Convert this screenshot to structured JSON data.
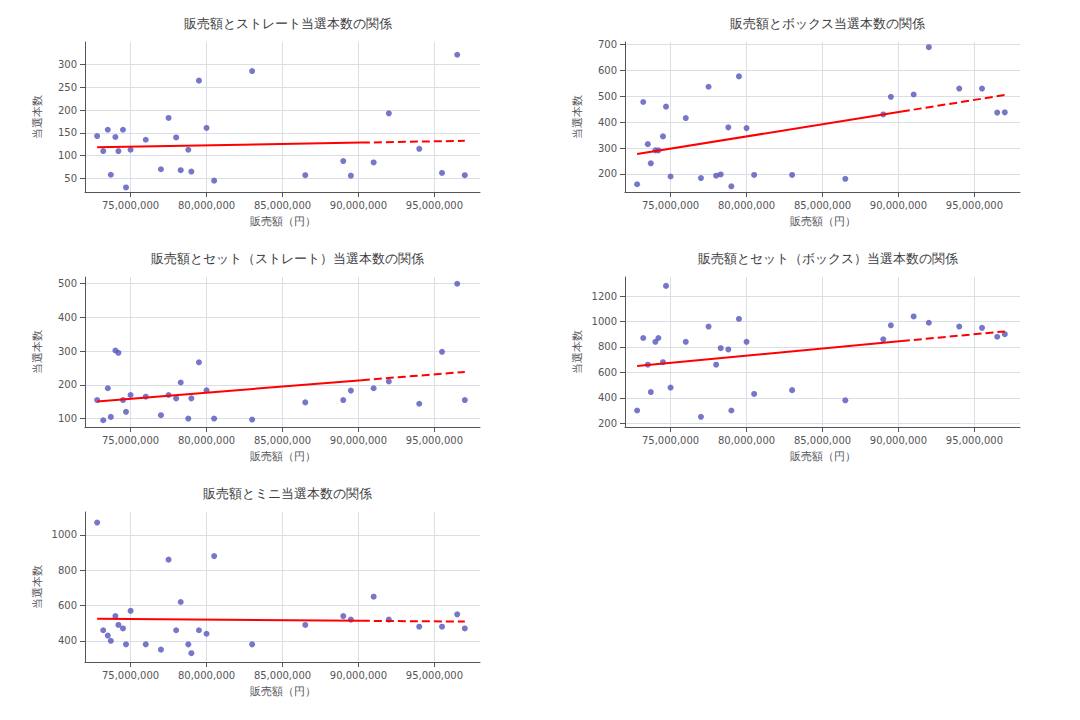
{
  "chart_data": [
    {
      "type": "scatter",
      "title": "販売額とストレート当選本数の関係",
      "xlabel": "販売額（円）",
      "ylabel": "当選本数",
      "xlim": [
        72000000,
        98000000
      ],
      "xticks": [
        {
          "value": 75000000,
          "label": "75,000,000"
        },
        {
          "value": 80000000,
          "label": "80,000,000"
        },
        {
          "value": 85000000,
          "label": "85,000,000"
        },
        {
          "value": 90000000,
          "label": "90,000,000"
        },
        {
          "value": 95000000,
          "label": "95,000,000"
        }
      ],
      "ylim": [
        20,
        350
      ],
      "yticks": [
        50,
        100,
        150,
        200,
        250,
        300
      ],
      "grid": true,
      "series": [
        {
          "type": "scatter",
          "color": "#5555bb",
          "marker": "circle",
          "x": [
            72800000,
            73200000,
            73500000,
            73700000,
            74000000,
            74200000,
            74500000,
            74700000,
            75000000,
            76000000,
            77000000,
            77500000,
            78000000,
            78300000,
            78800000,
            79000000,
            79500000,
            80000000,
            80500000,
            83000000,
            86500000,
            89000000,
            89500000,
            91000000,
            92000000,
            94000000,
            95500000,
            96500000,
            97000000
          ],
          "values": [
            143,
            110,
            157,
            58,
            141,
            110,
            157,
            30,
            113,
            135,
            70,
            183,
            140,
            68,
            113,
            65,
            265,
            161,
            45,
            286,
            57,
            88,
            56,
            85,
            193,
            115,
            62,
            322,
            57
          ]
        },
        {
          "type": "line",
          "color": "red",
          "line_style": "solid",
          "x": [
            72800000,
            90224000
          ],
          "values": [
            118.538,
            128.689
          ]
        },
        {
          "type": "line",
          "color": "red",
          "line_style": "dashed",
          "x": [
            90224000,
            97000000
          ],
          "values": [
            128.689,
            132.636
          ]
        }
      ]
    },
    {
      "type": "scatter",
      "title": "販売額とボックス当選本数の関係",
      "xlabel": "販売額（円）",
      "ylabel": "当選本数",
      "xlim": [
        72000000,
        98000000
      ],
      "xticks": [
        {
          "value": 75000000,
          "label": "75,000,000"
        },
        {
          "value": 80000000,
          "label": "80,000,000"
        },
        {
          "value": 85000000,
          "label": "85,000,000"
        },
        {
          "value": 90000000,
          "label": "90,000,000"
        },
        {
          "value": 95000000,
          "label": "95,000,000"
        }
      ],
      "ylim": [
        130,
        710
      ],
      "yticks": [
        200,
        300,
        400,
        500,
        600,
        700
      ],
      "grid": true,
      "series": [
        {
          "type": "scatter",
          "color": "#5555bb",
          "marker": "circle",
          "x": [
            72800000,
            73200000,
            73500000,
            73700000,
            74000000,
            74200000,
            74500000,
            74700000,
            75000000,
            76000000,
            77000000,
            77500000,
            78000000,
            78300000,
            78800000,
            79000000,
            79500000,
            80000000,
            80500000,
            83000000,
            86500000,
            89000000,
            89500000,
            91000000,
            92000000,
            94000000,
            95500000,
            96500000,
            97000000
          ],
          "values": [
            160,
            478,
            315,
            241,
            291,
            291,
            345,
            460,
            190,
            416,
            184,
            537,
            193,
            198,
            380,
            152,
            577,
            377,
            196,
            196,
            181,
            430,
            498,
            507,
            690,
            530,
            530,
            437,
            438
          ]
        },
        {
          "type": "line",
          "color": "red",
          "line_style": "solid",
          "x": [
            72800000,
            90224000
          ],
          "values": [
            277.106,
            441.148
          ]
        },
        {
          "type": "line",
          "color": "red",
          "line_style": "dashed",
          "x": [
            90224000,
            97000000
          ],
          "values": [
            441.148,
            504.942
          ]
        }
      ]
    },
    {
      "type": "scatter",
      "title": "販売額とセット（ストレート）当選本数の関係",
      "xlabel": "販売額（円）",
      "ylabel": "当選本数",
      "xlim": [
        72000000,
        98000000
      ],
      "xticks": [
        {
          "value": 75000000,
          "label": "75,000,000"
        },
        {
          "value": 80000000,
          "label": "80,000,000"
        },
        {
          "value": 85000000,
          "label": "85,000,000"
        },
        {
          "value": 90000000,
          "label": "90,000,000"
        },
        {
          "value": 95000000,
          "label": "95,000,000"
        }
      ],
      "ylim": [
        75,
        520
      ],
      "yticks": [
        100,
        200,
        300,
        400,
        500
      ],
      "grid": true,
      "series": [
        {
          "type": "scatter",
          "color": "#5555bb",
          "marker": "circle",
          "x": [
            72800000,
            73200000,
            73500000,
            73700000,
            74000000,
            74200000,
            74500000,
            74700000,
            75000000,
            76000000,
            77000000,
            77500000,
            78000000,
            78300000,
            78800000,
            79000000,
            79500000,
            80000000,
            80500000,
            83000000,
            86500000,
            89000000,
            89500000,
            91000000,
            92000000,
            94000000,
            95500000,
            96500000,
            97000000
          ],
          "values": [
            155,
            95,
            190,
            105,
            302,
            295,
            155,
            120,
            170,
            165,
            110,
            170,
            160,
            207,
            100,
            160,
            267,
            184,
            100,
            97,
            148,
            155,
            183,
            190,
            210,
            144,
            298,
            500,
            155
          ]
        },
        {
          "type": "line",
          "color": "red",
          "line_style": "solid",
          "x": [
            72800000,
            90224000
          ],
          "values": [
            150.845,
            213.895
          ]
        },
        {
          "type": "line",
          "color": "red",
          "line_style": "dashed",
          "x": [
            90224000,
            97000000
          ],
          "values": [
            213.895,
            238.414
          ]
        }
      ]
    },
    {
      "type": "scatter",
      "title": "販売額とセット（ボックス）当選本数の関係",
      "xlabel": "販売額（円）",
      "ylabel": "当選本数",
      "xlim": [
        72000000,
        98000000
      ],
      "xticks": [
        {
          "value": 75000000,
          "label": "75,000,000"
        },
        {
          "value": 80000000,
          "label": "80,000,000"
        },
        {
          "value": 85000000,
          "label": "85,000,000"
        },
        {
          "value": 90000000,
          "label": "90,000,000"
        },
        {
          "value": 95000000,
          "label": "95,000,000"
        }
      ],
      "ylim": [
        170,
        1350
      ],
      "yticks": [
        200,
        400,
        600,
        800,
        1000,
        1200
      ],
      "grid": true,
      "series": [
        {
          "type": "scatter",
          "color": "#5555bb",
          "marker": "circle",
          "x": [
            72800000,
            73200000,
            73500000,
            73700000,
            74000000,
            74200000,
            74500000,
            74700000,
            75000000,
            76000000,
            77000000,
            77500000,
            78000000,
            78300000,
            78800000,
            79000000,
            79500000,
            80000000,
            80500000,
            83000000,
            86500000,
            89000000,
            89500000,
            91000000,
            92000000,
            94000000,
            95500000,
            96500000,
            97000000
          ],
          "values": [
            300,
            870,
            660,
            445,
            840,
            870,
            680,
            1280,
            480,
            840,
            250,
            960,
            660,
            790,
            780,
            300,
            1020,
            840,
            430,
            460,
            380,
            860,
            970,
            1040,
            990,
            960,
            950,
            880,
            900
          ]
        },
        {
          "type": "line",
          "color": "red",
          "line_style": "solid",
          "x": [
            72800000,
            90224000
          ],
          "values": [
            649.521,
            845.723
          ]
        },
        {
          "type": "line",
          "color": "red",
          "line_style": "dashed",
          "x": [
            90224000,
            97000000
          ],
          "values": [
            845.723,
            922.024
          ]
        }
      ]
    },
    {
      "type": "scatter",
      "title": "販売額とミニ当選本数の関係",
      "xlabel": "販売額（円）",
      "ylabel": "当選本数",
      "xlim": [
        72000000,
        98000000
      ],
      "xticks": [
        {
          "value": 75000000,
          "label": "75,000,000"
        },
        {
          "value": 80000000,
          "label": "80,000,000"
        },
        {
          "value": 85000000,
          "label": "85,000,000"
        },
        {
          "value": 90000000,
          "label": "90,000,000"
        },
        {
          "value": 95000000,
          "label": "95,000,000"
        }
      ],
      "ylim": [
        280,
        1130
      ],
      "yticks": [
        400,
        600,
        800,
        1000
      ],
      "grid": true,
      "series": [
        {
          "type": "scatter",
          "color": "#5555bb",
          "marker": "circle",
          "x": [
            72800000,
            73200000,
            73500000,
            73700000,
            74000000,
            74200000,
            74500000,
            74700000,
            75000000,
            76000000,
            77000000,
            77500000,
            78000000,
            78300000,
            78800000,
            79000000,
            79500000,
            80000000,
            80500000,
            83000000,
            86500000,
            89000000,
            89500000,
            91000000,
            92000000,
            94000000,
            95500000,
            96500000,
            97000000
          ],
          "values": [
            1070,
            460,
            430,
            400,
            540,
            490,
            470,
            380,
            570,
            380,
            350,
            860,
            460,
            620,
            380,
            330,
            460,
            440,
            880,
            380,
            490,
            540,
            520,
            650,
            520,
            480,
            480,
            550,
            470
          ]
        },
        {
          "type": "line",
          "color": "red",
          "line_style": "solid",
          "x": [
            72800000,
            90224000
          ],
          "values": [
            524.547,
            513.4
          ]
        },
        {
          "type": "line",
          "color": "red",
          "line_style": "dashed",
          "x": [
            90224000,
            97000000
          ],
          "values": [
            513.4,
            509.065
          ]
        }
      ]
    }
  ]
}
